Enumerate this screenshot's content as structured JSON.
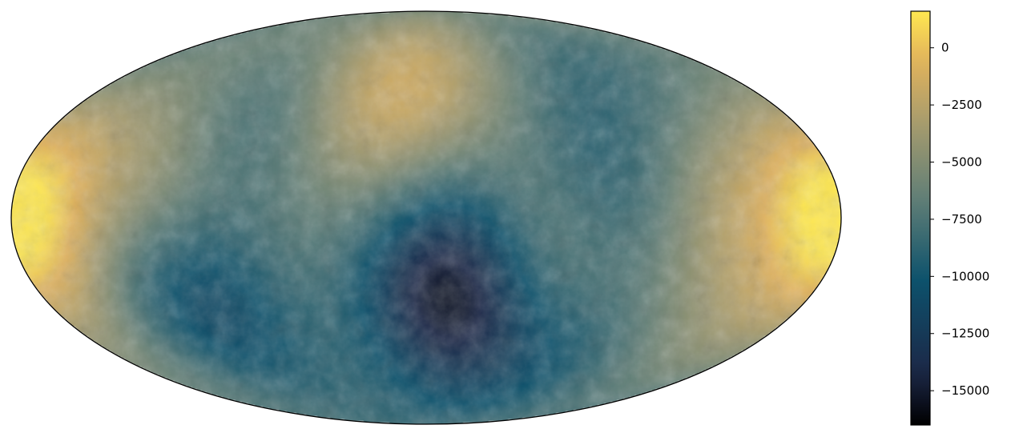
{
  "chart_data": {
    "type": "heatmap",
    "projection": "mollweide",
    "title": "",
    "grid": false,
    "colormap": "cividis",
    "colorbar": {
      "location": "right",
      "range": [
        -16500,
        1600
      ],
      "ticks": [
        0,
        -2500,
        -5000,
        -7500,
        -10000,
        -12500,
        -15000
      ],
      "tick_labels": [
        "0",
        "−2500",
        "−5000",
        "−7500",
        "−10000",
        "−12500",
        "−15000"
      ]
    },
    "features": [
      {
        "lon": -175,
        "lat": 0,
        "value": 500
      },
      {
        "lon": 175,
        "lat": 0,
        "value": 0
      },
      {
        "lon": -25,
        "lat": 42,
        "value": -1500
      },
      {
        "lon": -8,
        "lat": 60,
        "value": -2200
      },
      {
        "lon": 130,
        "lat": 5,
        "value": -2500
      },
      {
        "lon": -125,
        "lat": 20,
        "value": -3000
      },
      {
        "lon": 50,
        "lat": -15,
        "value": -4000
      },
      {
        "lon": -35,
        "lat": -60,
        "value": -3500
      },
      {
        "lon": 140,
        "lat": -45,
        "value": -4000
      },
      {
        "lon": 15,
        "lat": -35,
        "value": -16000
      },
      {
        "lon": 8,
        "lat": -20,
        "value": -12500
      },
      {
        "lon": -105,
        "lat": -32,
        "value": -12500
      },
      {
        "lon": 80,
        "lat": -60,
        "value": -11000
      },
      {
        "lon": 80,
        "lat": 10,
        "value": -10000
      },
      {
        "lon": -80,
        "lat": 42,
        "value": -10000
      },
      {
        "lon": 100,
        "lat": 55,
        "value": -9500
      },
      {
        "lon": -45,
        "lat": -60,
        "value": -10500
      }
    ]
  }
}
